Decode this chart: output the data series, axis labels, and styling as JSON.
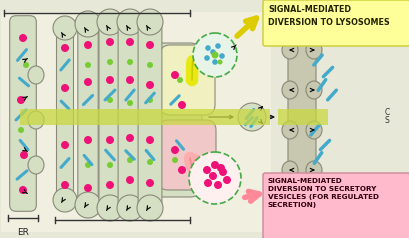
{
  "bg_color": "#e8e8d8",
  "organelle_color": "#d4dfc4",
  "organelle_edge": "#8a8a7a",
  "yellow_bg": "#ffff88",
  "pink_bg": "#ffaaaa",
  "green_stripe_color": "#c8d840",
  "dot_pink": "#ee1177",
  "dot_green": "#77cc33",
  "dot_cyan": "#44aacc",
  "text_dark": "#111111",
  "label_lysosome": "SIGNAL-MEDIATED\nDIVERSION TO LYSOSOMES",
  "label_secretory": "SIGNAL-MEDIATED\nDIVERSION TO SECRETORY\nVESICLES (FOR REGULATED\nSECRETION)",
  "label_er": "ER",
  "label_cs": "C\nS"
}
